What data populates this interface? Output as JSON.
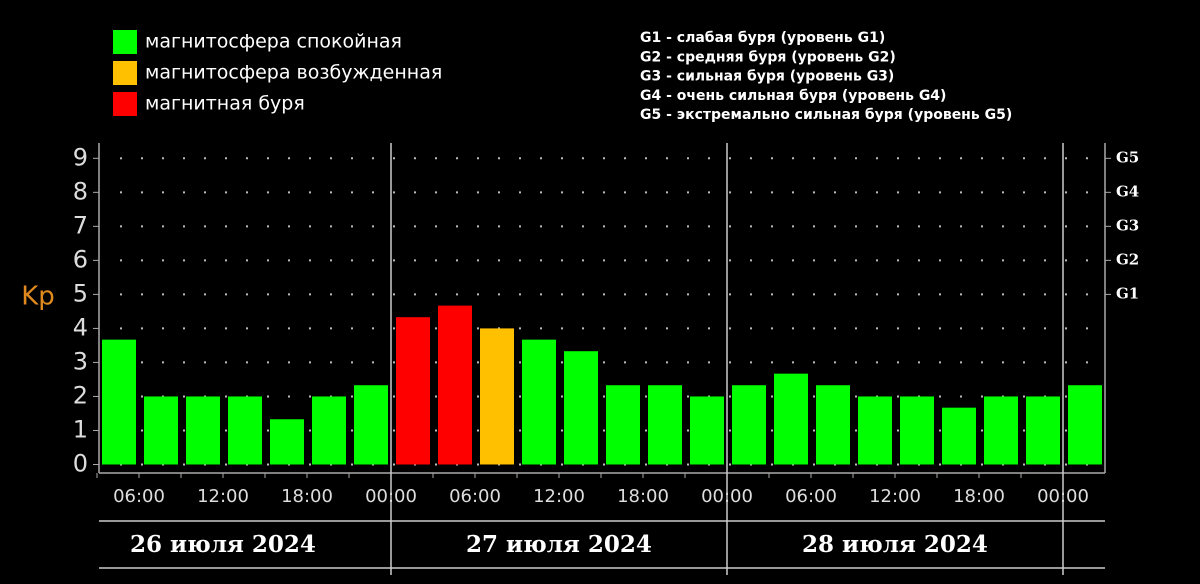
{
  "chart_data": {
    "type": "bar",
    "y_label": "Kp",
    "legend": [
      {
        "name": "магнитосфера спокойная",
        "color": "#00ff00"
      },
      {
        "name": "магнитосфера возбужденная",
        "color": "#ffc000"
      },
      {
        "name": "магнитная буря",
        "color": "#ff0000"
      }
    ],
    "storm_levels": [
      "G1 - слабая буря (уровень G1)",
      "G2 - средняя буря (уровень G2)",
      "G3 - сильная буря (уровень G3)",
      "G4 - очень сильная буря (уровень G4)",
      "G5 - экстремально сильная буря (уровень G5)"
    ],
    "values": [
      3.67,
      2,
      2,
      2,
      1.33,
      2,
      2.33,
      4.33,
      4.67,
      4,
      3.67,
      3.33,
      2.33,
      2.33,
      2,
      2.33,
      2.67,
      2.33,
      2,
      2,
      1.67,
      2,
      2,
      2.33
    ],
    "colors": [
      "#00ff00",
      "#00ff00",
      "#00ff00",
      "#00ff00",
      "#00ff00",
      "#00ff00",
      "#00ff00",
      "#ff0000",
      "#ff0000",
      "#ffc000",
      "#00ff00",
      "#00ff00",
      "#00ff00",
      "#00ff00",
      "#00ff00",
      "#00ff00",
      "#00ff00",
      "#00ff00",
      "#00ff00",
      "#00ff00",
      "#00ff00",
      "#00ff00",
      "#00ff00",
      "#00ff00"
    ],
    "xticks": [
      "06:00",
      "12:00",
      "18:00",
      "00:00",
      "06:00",
      "12:00",
      "18:00",
      "00:00",
      "06:00",
      "12:00",
      "18:00",
      "00:00"
    ],
    "days": [
      "26 июля 2024",
      "27 июля 2024",
      "28 июля 2024"
    ],
    "ylim": [
      -0.25,
      9.45
    ],
    "yticks": [
      0,
      1,
      2,
      3,
      4,
      5,
      6,
      7,
      8,
      9
    ],
    "y2lim": [
      -0.25,
      9.45
    ],
    "y2ticks": [
      {
        "value": 5,
        "label": "G1"
      },
      {
        "value": 6,
        "label": "G2"
      },
      {
        "value": 7,
        "label": "G3"
      },
      {
        "value": 8,
        "label": "G4"
      },
      {
        "value": 9,
        "label": "G5"
      }
    ],
    "grid": true
  }
}
